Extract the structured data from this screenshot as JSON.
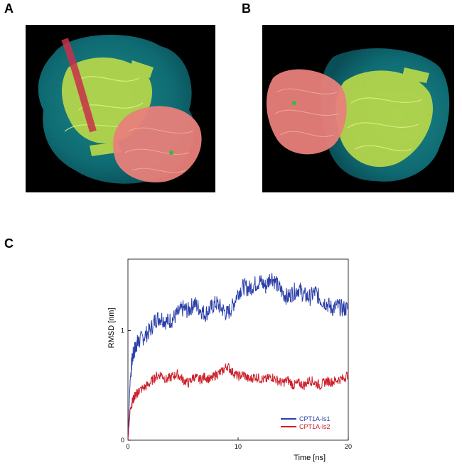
{
  "figure": {
    "panels": [
      {
        "id": "A",
        "label": "A",
        "kind": "molecular-render"
      },
      {
        "id": "B",
        "label": "B",
        "kind": "molecular-render"
      },
      {
        "id": "C",
        "label": "C",
        "kind": "line-chart"
      }
    ],
    "colors": {
      "background_render": "#000000",
      "surface": "#0f6b73",
      "ribbon_green": "#b8d84a",
      "ribbon_pink": "#e87f7a",
      "helix_red": "#c8304a",
      "ligand_green": "#2fbf3a"
    }
  },
  "chart_data": {
    "type": "line",
    "title": "",
    "xlabel": "Time [ns]",
    "ylabel": "RMSD [nm]",
    "xlim": [
      0,
      20
    ],
    "ylim": [
      0,
      1.65
    ],
    "xticks": [
      0,
      10,
      20
    ],
    "yticks": [
      0,
      1
    ],
    "grid": false,
    "legend_position": "bottom-right",
    "series": [
      {
        "name": "CPT1A-ls1",
        "color": "#2b3fa8",
        "x": [
          0,
          0.2,
          0.4,
          0.6,
          0.8,
          1.0,
          1.5,
          2.0,
          2.5,
          3.0,
          3.5,
          4.0,
          4.5,
          5.0,
          5.5,
          6.0,
          6.5,
          7.0,
          7.5,
          8.0,
          8.5,
          9.0,
          9.5,
          10.0,
          10.5,
          11.0,
          11.5,
          12.0,
          12.5,
          13.0,
          13.5,
          14.0,
          14.5,
          15.0,
          15.5,
          16.0,
          16.5,
          17.0,
          17.5,
          18.0,
          18.5,
          19.0,
          19.5,
          20.0
        ],
        "y": [
          0.0,
          0.55,
          0.75,
          0.82,
          0.88,
          0.9,
          0.95,
          1.0,
          1.1,
          1.12,
          1.08,
          1.1,
          1.15,
          1.2,
          1.18,
          1.25,
          1.2,
          1.15,
          1.2,
          1.25,
          1.2,
          1.15,
          1.22,
          1.35,
          1.4,
          1.38,
          1.42,
          1.45,
          1.4,
          1.5,
          1.42,
          1.35,
          1.3,
          1.35,
          1.38,
          1.32,
          1.3,
          1.35,
          1.28,
          1.25,
          1.2,
          1.22,
          1.2,
          1.2
        ]
      },
      {
        "name": "CPT1A-ls2",
        "color": "#cc1f2a",
        "x": [
          0,
          0.2,
          0.4,
          0.6,
          0.8,
          1.0,
          1.5,
          2.0,
          2.5,
          3.0,
          3.5,
          4.0,
          4.5,
          5.0,
          5.5,
          6.0,
          6.5,
          7.0,
          7.5,
          8.0,
          8.5,
          9.0,
          9.5,
          10.0,
          10.5,
          11.0,
          11.5,
          12.0,
          12.5,
          13.0,
          13.5,
          14.0,
          14.5,
          15.0,
          15.5,
          16.0,
          16.5,
          17.0,
          17.5,
          18.0,
          18.5,
          19.0,
          19.5,
          20.0
        ],
        "y": [
          0.0,
          0.28,
          0.35,
          0.4,
          0.42,
          0.45,
          0.48,
          0.52,
          0.58,
          0.6,
          0.55,
          0.58,
          0.6,
          0.55,
          0.52,
          0.58,
          0.55,
          0.58,
          0.55,
          0.6,
          0.62,
          0.68,
          0.62,
          0.58,
          0.6,
          0.55,
          0.58,
          0.56,
          0.55,
          0.58,
          0.55,
          0.52,
          0.55,
          0.5,
          0.52,
          0.5,
          0.55,
          0.52,
          0.5,
          0.54,
          0.53,
          0.55,
          0.56,
          0.6
        ]
      }
    ]
  }
}
